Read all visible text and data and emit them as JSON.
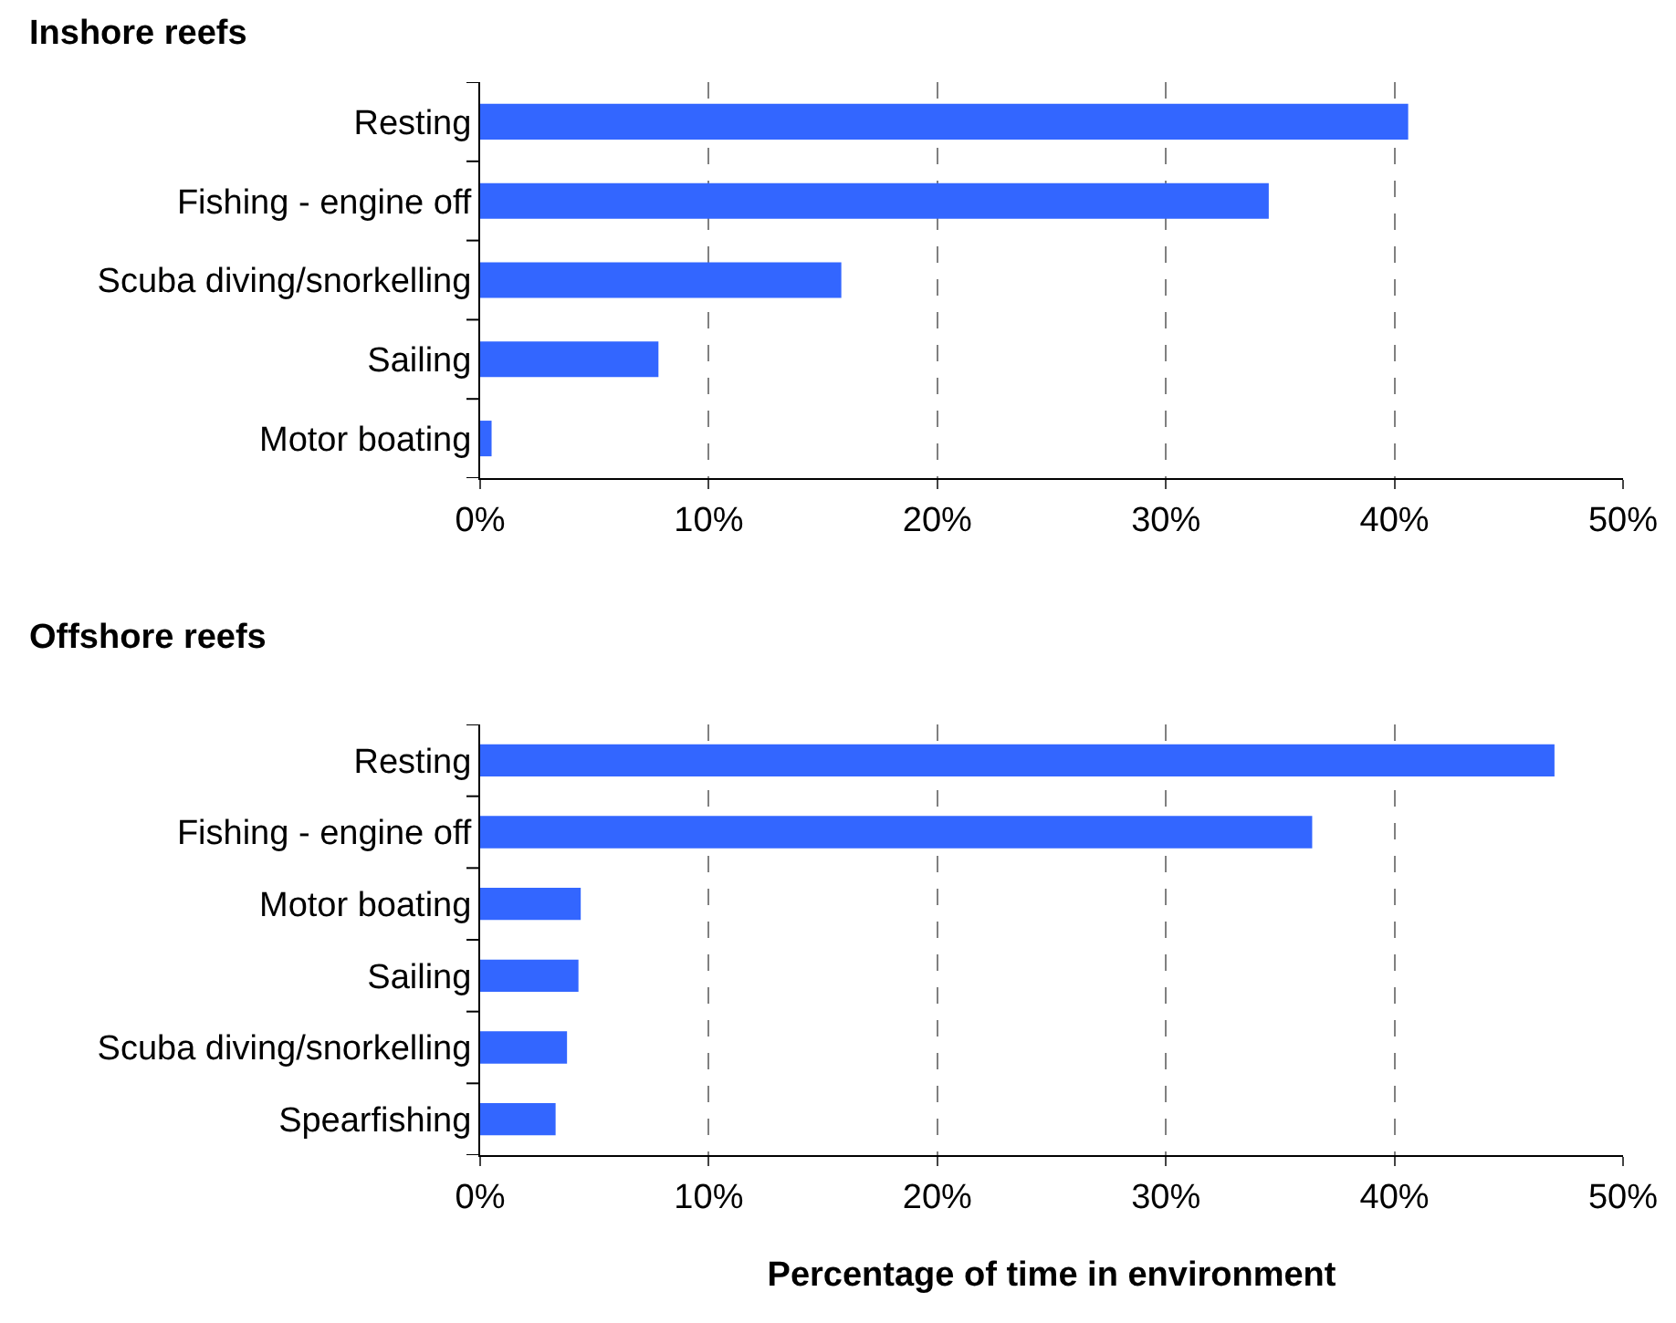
{
  "chart_data": [
    {
      "type": "bar",
      "title": "Inshore reefs",
      "orientation": "horizontal",
      "categories": [
        "Resting",
        "Fishing - engine off",
        "Scuba diving/snorkelling",
        "Sailing",
        "Motor boating"
      ],
      "values": [
        40.6,
        34.5,
        15.8,
        7.8,
        0.5
      ],
      "color": "#3366ff",
      "xlim": [
        0,
        50
      ],
      "xticks": [
        {
          "value": 0,
          "label": "0%"
        },
        {
          "value": 10,
          "label": "10%"
        },
        {
          "value": 20,
          "label": "20%"
        },
        {
          "value": 30,
          "label": "30%"
        },
        {
          "value": 40,
          "label": "40%"
        },
        {
          "value": 50,
          "label": "50%"
        }
      ],
      "grid": "x"
    },
    {
      "type": "bar",
      "title": "Offshore reefs",
      "xlabel": "Percentage of time in environment",
      "orientation": "horizontal",
      "categories": [
        "Resting",
        "Fishing - engine off",
        "Motor boating",
        "Sailing",
        "Scuba diving/snorkelling",
        "Spearfishing"
      ],
      "values": [
        47.0,
        36.4,
        4.4,
        4.3,
        3.8,
        3.3
      ],
      "color": "#3366ff",
      "xlim": [
        0,
        50
      ],
      "xticks": [
        {
          "value": 0,
          "label": "0%"
        },
        {
          "value": 10,
          "label": "10%"
        },
        {
          "value": 20,
          "label": "20%"
        },
        {
          "value": 30,
          "label": "30%"
        },
        {
          "value": 40,
          "label": "40%"
        },
        {
          "value": 50,
          "label": "50%"
        }
      ],
      "grid": "x"
    }
  ]
}
